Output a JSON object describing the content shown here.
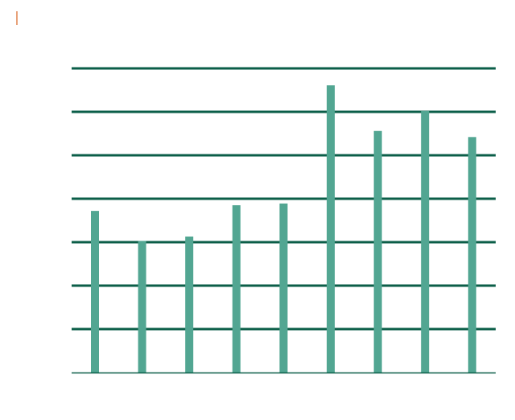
{
  "colors": {
    "gridline": "#0b5e48",
    "bar": "#52a692",
    "accent": "#e8a27a",
    "background": "#ffffff"
  },
  "chart_data": {
    "type": "bar",
    "categories": [
      "",
      "",
      "",
      "",
      "",
      "",
      "",
      "",
      ""
    ],
    "values": [
      3.72,
      3.03,
      3.13,
      3.85,
      3.89,
      6.61,
      5.56,
      6.02,
      5.42
    ],
    "ylim": [
      0,
      7
    ],
    "yticks": [
      0,
      1,
      2,
      3,
      4,
      5,
      6,
      7
    ],
    "grid": true,
    "title": "",
    "xlabel": "",
    "ylabel": ""
  }
}
